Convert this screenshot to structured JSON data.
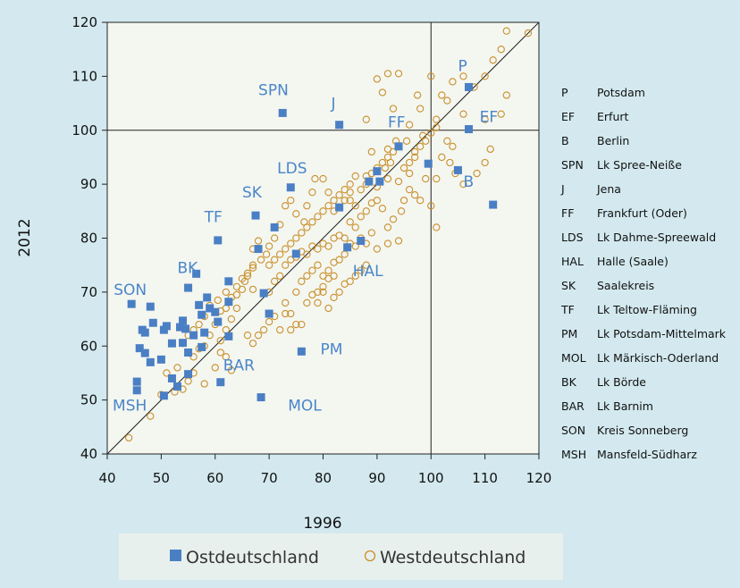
{
  "chart_data": {
    "type": "scatter",
    "title": "",
    "xlabel": "1996",
    "ylabel": "2012",
    "xlim": [
      40,
      120
    ],
    "ylim": [
      40,
      120
    ],
    "x_ticks": [
      40,
      50,
      60,
      70,
      80,
      90,
      100,
      110,
      120
    ],
    "y_ticks": [
      40,
      50,
      60,
      70,
      80,
      90,
      100,
      110,
      120
    ],
    "grid": false,
    "reference_lines": {
      "diagonal": true,
      "x": 100,
      "y": 100
    },
    "legend_position": "bottom",
    "colors": {
      "background": "#d3e9ef",
      "plot_background": "#f4f6f0",
      "ost": "#4a7fc4",
      "west": "#c9902c",
      "annotation": "#4a86c8",
      "legend_background": "#e8f0ee"
    },
    "series": [
      {
        "name": "Ostdeutschland",
        "marker": "square",
        "points": [
          [
            107,
            108
          ],
          [
            72.5,
            103.2
          ],
          [
            83,
            101
          ],
          [
            107,
            100.2
          ],
          [
            99.5,
            93.8
          ],
          [
            105,
            92.6
          ],
          [
            111.5,
            86.2
          ],
          [
            74,
            89.4
          ],
          [
            90,
            92.4
          ],
          [
            94,
            97
          ],
          [
            90.5,
            90.5
          ],
          [
            88.5,
            90.5
          ],
          [
            67.5,
            84.2
          ],
          [
            83,
            85.7
          ],
          [
            60.5,
            79.6
          ],
          [
            71,
            82
          ],
          [
            84.5,
            78.3
          ],
          [
            87,
            79.5
          ],
          [
            75,
            77.1
          ],
          [
            68,
            78
          ],
          [
            62.5,
            72
          ],
          [
            56.5,
            73.4
          ],
          [
            55,
            70.8
          ],
          [
            69,
            69.8
          ],
          [
            44.5,
            67.8
          ],
          [
            48,
            67.3
          ],
          [
            62.5,
            68.2
          ],
          [
            58.5,
            69
          ],
          [
            59,
            67
          ],
          [
            57,
            67.6
          ],
          [
            57.5,
            65.8
          ],
          [
            60,
            66.3
          ],
          [
            60.5,
            64.5
          ],
          [
            54,
            64.7
          ],
          [
            48.5,
            64.3
          ],
          [
            50.5,
            63
          ],
          [
            51,
            63.7
          ],
          [
            53.5,
            63.5
          ],
          [
            54.5,
            63.2
          ],
          [
            56,
            62
          ],
          [
            58,
            62.5
          ],
          [
            62.5,
            61.8
          ],
          [
            46.5,
            63
          ],
          [
            47,
            62.5
          ],
          [
            52,
            60.5
          ],
          [
            54,
            60.6
          ],
          [
            46,
            59.6
          ],
          [
            47,
            58.7
          ],
          [
            57.5,
            59.8
          ],
          [
            55,
            58.8
          ],
          [
            70,
            66
          ],
          [
            48,
            57
          ],
          [
            50,
            57.5
          ],
          [
            52,
            54
          ],
          [
            55,
            54.8
          ],
          [
            61,
            53.3
          ],
          [
            45.5,
            53.4
          ],
          [
            45.5,
            51.8
          ],
          [
            53,
            52.5
          ],
          [
            50.5,
            50.8
          ],
          [
            68.5,
            50.5
          ],
          [
            76,
            59
          ]
        ]
      },
      {
        "name": "Westdeutschland",
        "marker": "circle",
        "points": [
          [
            114,
            118.4
          ],
          [
            118,
            118
          ],
          [
            111.5,
            113
          ],
          [
            113,
            115
          ],
          [
            110,
            110
          ],
          [
            108,
            108
          ],
          [
            106,
            110
          ],
          [
            102,
            106.5
          ],
          [
            104,
            109
          ],
          [
            103,
            105.5
          ],
          [
            106,
            103
          ],
          [
            110,
            102
          ],
          [
            113,
            103
          ],
          [
            114,
            106.5
          ],
          [
            101,
            102
          ],
          [
            98,
            104
          ],
          [
            96,
            101
          ],
          [
            97.5,
            106.5
          ],
          [
            94,
            110.5
          ],
          [
            92,
            110.5
          ],
          [
            90,
            109.5
          ],
          [
            100,
            110
          ],
          [
            91,
            107
          ],
          [
            93,
            104
          ],
          [
            88,
            102
          ],
          [
            89,
            96
          ],
          [
            92,
            96.5
          ],
          [
            93.5,
            98
          ],
          [
            95.5,
            98
          ],
          [
            97,
            96
          ],
          [
            98.5,
            99
          ],
          [
            100,
            99.5
          ],
          [
            101,
            100.5
          ],
          [
            103,
            98
          ],
          [
            104,
            97
          ],
          [
            102,
            95
          ],
          [
            103.5,
            94
          ],
          [
            104.5,
            92
          ],
          [
            106,
            90
          ],
          [
            108.5,
            92
          ],
          [
            110,
            94
          ],
          [
            111,
            96.5
          ],
          [
            101,
            91
          ],
          [
            99,
            91
          ],
          [
            96,
            92
          ],
          [
            94,
            90.5
          ],
          [
            92,
            91
          ],
          [
            92.5,
            94
          ],
          [
            91.5,
            93
          ],
          [
            90,
            89.5
          ],
          [
            88,
            91.5
          ],
          [
            86,
            91.5
          ],
          [
            85,
            88.5
          ],
          [
            84,
            87
          ],
          [
            82,
            85
          ],
          [
            81,
            88.5
          ],
          [
            80,
            91
          ],
          [
            78.5,
            91
          ],
          [
            78,
            88.5
          ],
          [
            77,
            86
          ],
          [
            76.5,
            83
          ],
          [
            75,
            84.5
          ],
          [
            74,
            87
          ],
          [
            73,
            86
          ],
          [
            72,
            82.5
          ],
          [
            71,
            80
          ],
          [
            70,
            78.5
          ],
          [
            69.5,
            77
          ],
          [
            68.5,
            76
          ],
          [
            68,
            79.5
          ],
          [
            67,
            78
          ],
          [
            67,
            75
          ],
          [
            66,
            73
          ],
          [
            65,
            70.5
          ],
          [
            64,
            69.5
          ],
          [
            64,
            67
          ],
          [
            63,
            65
          ],
          [
            62,
            63
          ],
          [
            61,
            61
          ],
          [
            61,
            58.8
          ],
          [
            62,
            58
          ],
          [
            63,
            55.5
          ],
          [
            60,
            56
          ],
          [
            58,
            53
          ],
          [
            56,
            55
          ],
          [
            55,
            53.5
          ],
          [
            54,
            52
          ],
          [
            52.5,
            51.5
          ],
          [
            50,
            51
          ],
          [
            48,
            47
          ],
          [
            44,
            43
          ],
          [
            60.5,
            68.5
          ],
          [
            62,
            70
          ],
          [
            65.5,
            72
          ],
          [
            67,
            70.5
          ],
          [
            70,
            70
          ],
          [
            71,
            72
          ],
          [
            72,
            73
          ],
          [
            73,
            75
          ],
          [
            74,
            76
          ],
          [
            75,
            76.5
          ],
          [
            76,
            77.5
          ],
          [
            77,
            77
          ],
          [
            78,
            78.5
          ],
          [
            79,
            78
          ],
          [
            80,
            79
          ],
          [
            81,
            78.5
          ],
          [
            82,
            80
          ],
          [
            83,
            80.5
          ],
          [
            84,
            80
          ],
          [
            85,
            83
          ],
          [
            86,
            82
          ],
          [
            87,
            84
          ],
          [
            88,
            85
          ],
          [
            89,
            86.5
          ],
          [
            90,
            87
          ],
          [
            91,
            85.5
          ],
          [
            92,
            82
          ],
          [
            93,
            83.5
          ],
          [
            94.5,
            85
          ],
          [
            95,
            87
          ],
          [
            96,
            89
          ],
          [
            97,
            88
          ],
          [
            98,
            87
          ],
          [
            100,
            86
          ],
          [
            101,
            82
          ],
          [
            73,
            68
          ],
          [
            74,
            66
          ],
          [
            75,
            64
          ],
          [
            74,
            63
          ],
          [
            75,
            70
          ],
          [
            76,
            72
          ],
          [
            77,
            73
          ],
          [
            78,
            74
          ],
          [
            79,
            75
          ],
          [
            80,
            71
          ],
          [
            81,
            72.5
          ],
          [
            82,
            73
          ],
          [
            83,
            76
          ],
          [
            84,
            77
          ],
          [
            85,
            79
          ],
          [
            86,
            78.5
          ],
          [
            87,
            80
          ],
          [
            88,
            79
          ],
          [
            89,
            81
          ],
          [
            90,
            78
          ],
          [
            92,
            79
          ],
          [
            94,
            79.5
          ],
          [
            79,
            68
          ],
          [
            80,
            70
          ],
          [
            81,
            67
          ],
          [
            82,
            69
          ],
          [
            83,
            70
          ],
          [
            84,
            71.5
          ],
          [
            85,
            72
          ],
          [
            86,
            73
          ],
          [
            87,
            74
          ],
          [
            88,
            75
          ],
          [
            66,
            62
          ],
          [
            67,
            60.5
          ],
          [
            68,
            62
          ],
          [
            69,
            63
          ],
          [
            70,
            64.5
          ],
          [
            71,
            65.5
          ],
          [
            72,
            63
          ],
          [
            73,
            66
          ],
          [
            76,
            64
          ],
          [
            77,
            68
          ],
          [
            78,
            69.5
          ],
          [
            79,
            70
          ],
          [
            80,
            73
          ],
          [
            81,
            74
          ],
          [
            82,
            75.5
          ],
          [
            58,
            60
          ],
          [
            59,
            62
          ],
          [
            60,
            64
          ],
          [
            61,
            66.5
          ],
          [
            62,
            67
          ],
          [
            63,
            69
          ],
          [
            64,
            71
          ],
          [
            65,
            72.5
          ],
          [
            66,
            73.5
          ],
          [
            67,
            74.5
          ],
          [
            54,
            60.5
          ],
          [
            55,
            62
          ],
          [
            56,
            63
          ],
          [
            57,
            64
          ],
          [
            58,
            65.5
          ],
          [
            59,
            67.5
          ],
          [
            51,
            55
          ],
          [
            53,
            56
          ],
          [
            56,
            58
          ],
          [
            57,
            59.5
          ],
          [
            85,
            87
          ],
          [
            86,
            86
          ],
          [
            87,
            89
          ],
          [
            88,
            90
          ],
          [
            89,
            92
          ],
          [
            90,
            93
          ],
          [
            91,
            94
          ],
          [
            92,
            95
          ],
          [
            93,
            96
          ],
          [
            94,
            97
          ],
          [
            95,
            93
          ],
          [
            96,
            94
          ],
          [
            97,
            95
          ],
          [
            98,
            97
          ],
          [
            99,
            98
          ],
          [
            79,
            84
          ],
          [
            80,
            85
          ],
          [
            81,
            86
          ],
          [
            82,
            87
          ],
          [
            83,
            88
          ],
          [
            84,
            89
          ],
          [
            85,
            90
          ],
          [
            70,
            75
          ],
          [
            71,
            76
          ],
          [
            72,
            77
          ],
          [
            73,
            78
          ],
          [
            74,
            79
          ],
          [
            75,
            80
          ],
          [
            76,
            81
          ],
          [
            77,
            82
          ],
          [
            78,
            83
          ]
        ]
      }
    ],
    "annotations": [
      {
        "label": "P",
        "x": 105,
        "y": 111
      },
      {
        "label": "SPN",
        "x": 68,
        "y": 106.5
      },
      {
        "label": "J",
        "x": 81.5,
        "y": 104
      },
      {
        "label": "FF",
        "x": 92,
        "y": 100.5
      },
      {
        "label": "EF",
        "x": 109,
        "y": 101.5
      },
      {
        "label": "B",
        "x": 106,
        "y": 89.5
      },
      {
        "label": "LDS",
        "x": 71.5,
        "y": 92
      },
      {
        "label": "SK",
        "x": 65,
        "y": 87.5
      },
      {
        "label": "TF",
        "x": 58,
        "y": 83
      },
      {
        "label": "HAL",
        "x": 85.5,
        "y": 73
      },
      {
        "label": "BK",
        "x": 53,
        "y": 73.5
      },
      {
        "label": "SON",
        "x": 41.2,
        "y": 69.5
      },
      {
        "label": "PM",
        "x": 79.5,
        "y": 58.5
      },
      {
        "label": "BAR",
        "x": 61.5,
        "y": 55.5
      },
      {
        "label": "MSH",
        "x": 41,
        "y": 48
      },
      {
        "label": "MOL",
        "x": 73.5,
        "y": 48
      }
    ]
  },
  "key": [
    {
      "abbr": "P",
      "name": "Potsdam"
    },
    {
      "abbr": "EF",
      "name": "Erfurt"
    },
    {
      "abbr": "B",
      "name": "Berlin"
    },
    {
      "abbr": "SPN",
      "name": "Lk Spree-Neiße"
    },
    {
      "abbr": "J",
      "name": "Jena"
    },
    {
      "abbr": "FF",
      "name": "Frankfurt (Oder)"
    },
    {
      "abbr": "LDS",
      "name": "Lk Dahme-Spreewald"
    },
    {
      "abbr": "HAL",
      "name": "Halle (Saale)"
    },
    {
      "abbr": "SK",
      "name": "Saalekreis"
    },
    {
      "abbr": "TF",
      "name": "Lk Teltow-Fläming"
    },
    {
      "abbr": "PM",
      "name": "Lk Potsdam-Mittelmark"
    },
    {
      "abbr": "MOL",
      "name": "Lk Märkisch-Oderland"
    },
    {
      "abbr": "BK",
      "name": "Lk Börde"
    },
    {
      "abbr": "BAR",
      "name": "Lk Barnim"
    },
    {
      "abbr": "SON",
      "name": "Kreis Sonneberg"
    },
    {
      "abbr": "MSH",
      "name": "Mansfeld-Südharz"
    }
  ],
  "legend": [
    {
      "label": "Ostdeutschland",
      "marker": "square"
    },
    {
      "label": "Westdeutschland",
      "marker": "circle"
    }
  ]
}
